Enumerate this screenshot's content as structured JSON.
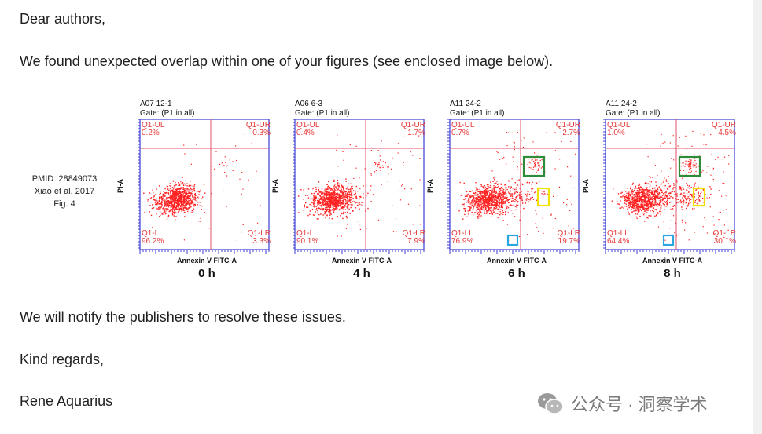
{
  "letter": {
    "greeting": "Dear authors,",
    "intro": "We found unexpected overlap within one of your figures (see enclosed image below).",
    "notify": "We will notify the publishers to resolve these issues.",
    "closing": "Kind regards,",
    "signature": "Rene Aquarius"
  },
  "figure": {
    "citation": {
      "pmid": "PMID: 28849073",
      "authors": "Xiao et al. 2017",
      "fig": "Fig. 4"
    },
    "panels": [
      {
        "sample": "A07 12-1",
        "gate": "Gate: (P1 in all)",
        "ul_label": "Q1-UL",
        "ul": "0.2%",
        "ur_label": "Q1-UR",
        "ur": "0.3%",
        "ll_label": "Q1-LL",
        "ll": "96.2%",
        "lr_label": "Q1-LR",
        "lr": "3.3%",
        "xlabel": "Annexin V FITC-A",
        "ylabel": "PI-A",
        "time": "0 h"
      },
      {
        "sample": "A06 6-3",
        "gate": "Gate: (P1 in all)",
        "ul_label": "Q1-UL",
        "ul": "0.4%",
        "ur_label": "Q1-UR",
        "ur": "1.7%",
        "ll_label": "Q1-LL",
        "ll": "90.1%",
        "lr_label": "Q1-LR",
        "lr": "7.9%",
        "xlabel": "Annexin V FITC-A",
        "ylabel": "PI-A",
        "time": "4 h"
      },
      {
        "sample": "A11 24-2",
        "gate": "Gate: (P1 in all)",
        "ul_label": "Q1-UL",
        "ul": "0.7%",
        "ur_label": "Q1-UR",
        "ur": "2.7%",
        "ll_label": "Q1-LL",
        "ll": "76.9%",
        "lr_label": "Q1-LR",
        "lr": "19.7%",
        "xlabel": "Annexin V FITC-A",
        "ylabel": "PI-A",
        "time": "6 h"
      },
      {
        "sample": "A11 24-2",
        "gate": "Gate: (P1 in all)",
        "ul_label": "Q1-UL",
        "ul": "1.0%",
        "ur_label": "Q1-UR",
        "ur": "4.5%",
        "ll_label": "Q1-LL",
        "ll": "64.4%",
        "lr_label": "Q1-LR",
        "lr": "30.1%",
        "xlabel": "Annexin V FITC-A",
        "ylabel": "PI-A",
        "time": "8 h"
      }
    ],
    "colors": {
      "dots": "#ff2020",
      "axes": "#3b3bd6",
      "gate_line": "#e0506a",
      "highlight_green": "#2e8b3a",
      "highlight_yellow": "#f2e000",
      "highlight_blue": "#2aa6e0"
    }
  },
  "watermark": {
    "text": "公众号 · 洞察学术",
    "icon": "wechat-icon"
  }
}
